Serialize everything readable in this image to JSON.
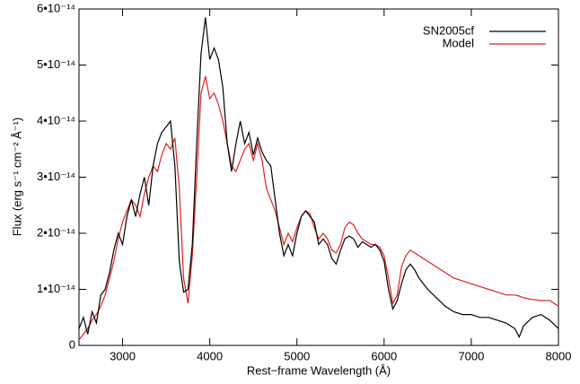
{
  "chart_data": {
    "type": "line",
    "xlabel": "Rest−frame Wavelength (Å)",
    "ylabel": "Flux (erg s⁻¹ cm⁻² Å⁻¹)",
    "xlim": [
      2500,
      8000
    ],
    "xticks": [
      3000,
      4000,
      5000,
      6000,
      7000,
      8000
    ],
    "ylim": [
      0,
      6e-14
    ],
    "yticks": [
      0,
      {
        "value": 1e-14,
        "label": "1•10⁻¹⁴"
      },
      {
        "value": 2e-14,
        "label": "2•10⁻¹⁴"
      },
      {
        "value": 3e-14,
        "label": "3•10⁻¹⁴"
      },
      {
        "value": 4e-14,
        "label": "4•10⁻¹⁴"
      },
      {
        "value": 5e-14,
        "label": "5•10⁻¹⁴"
      },
      {
        "value": 6e-14,
        "label": "6•10⁻¹⁴"
      }
    ],
    "legend": "upper right",
    "x": [
      2500,
      2550,
      2600,
      2650,
      2700,
      2750,
      2800,
      2850,
      2900,
      2950,
      3000,
      3050,
      3100,
      3150,
      3200,
      3250,
      3300,
      3350,
      3400,
      3450,
      3500,
      3550,
      3600,
      3650,
      3700,
      3750,
      3800,
      3850,
      3900,
      3950,
      4000,
      4050,
      4100,
      4150,
      4200,
      4250,
      4300,
      4350,
      4400,
      4450,
      4500,
      4550,
      4600,
      4650,
      4700,
      4750,
      4800,
      4850,
      4900,
      4950,
      5000,
      5050,
      5100,
      5150,
      5200,
      5250,
      5300,
      5350,
      5400,
      5450,
      5500,
      5550,
      5600,
      5650,
      5700,
      5750,
      5800,
      5850,
      5900,
      5950,
      6000,
      6050,
      6100,
      6150,
      6200,
      6250,
      6300,
      6350,
      6400,
      6500,
      6600,
      6700,
      6800,
      6900,
      7000,
      7100,
      7200,
      7300,
      7400,
      7500,
      7550,
      7600,
      7700,
      7800,
      7900,
      8000
    ],
    "series": [
      {
        "name": "SN2005cf",
        "color": "#000000",
        "values": [
          3e-15,
          5e-15,
          2e-15,
          6e-15,
          4e-15,
          9e-15,
          1e-14,
          1.3e-14,
          1.7e-14,
          2e-14,
          1.8e-14,
          2.3e-14,
          2.6e-14,
          2.3e-14,
          2.7e-14,
          3e-14,
          2.5e-14,
          3.2e-14,
          3.6e-14,
          3.8e-14,
          3.9e-14,
          4e-14,
          3.2e-14,
          1.5e-14,
          9.5e-15,
          1e-14,
          1.8e-14,
          3.6e-14,
          5.2e-14,
          5.85e-14,
          5.1e-14,
          5.3e-14,
          5.1e-14,
          4.6e-14,
          3.6e-14,
          3.1e-14,
          3.6e-14,
          4e-14,
          3.6e-14,
          3.8e-14,
          3.4e-14,
          3.7e-14,
          3.45e-14,
          3.3e-14,
          3.2e-14,
          2.6e-14,
          2e-14,
          1.6e-14,
          1.8e-14,
          1.6e-14,
          2e-14,
          2.3e-14,
          2.4e-14,
          2.3e-14,
          2.2e-14,
          1.8e-14,
          1.9e-14,
          1.8e-14,
          1.55e-14,
          1.45e-14,
          1.7e-14,
          1.9e-14,
          1.95e-14,
          1.9e-14,
          1.75e-14,
          1.85e-14,
          1.8e-14,
          1.75e-14,
          1.8e-14,
          1.7e-14,
          1.5e-14,
          1e-14,
          6.5e-15,
          8e-15,
          1.1e-14,
          1.35e-14,
          1.45e-14,
          1.35e-14,
          1.2e-14,
          1e-14,
          8.5e-15,
          7e-15,
          6e-15,
          5.5e-15,
          5.5e-15,
          5e-15,
          5e-15,
          4.5e-15,
          4e-15,
          3e-15,
          1.5e-15,
          3.5e-15,
          5e-15,
          5.5e-15,
          4.5e-15,
          3e-15
        ]
      },
      {
        "name": "Model",
        "color": "#e02020",
        "values": [
          1e-15,
          2e-15,
          3e-15,
          4.5e-15,
          5.5e-15,
          7e-15,
          9e-15,
          1.2e-14,
          1.5e-14,
          1.9e-14,
          2.2e-14,
          2.4e-14,
          2.6e-14,
          2.5e-14,
          2.3e-14,
          2.7e-14,
          3e-14,
          3.2e-14,
          3.1e-14,
          3.4e-14,
          3.6e-14,
          3.5e-14,
          3.7e-14,
          2.8e-14,
          1.2e-14,
          7.5e-15,
          1.6e-14,
          3e-14,
          4.5e-14,
          4.8e-14,
          4.4e-14,
          4.5e-14,
          4.3e-14,
          4e-14,
          3.6e-14,
          3.2e-14,
          3.1e-14,
          3.3e-14,
          3.5e-14,
          3.6e-14,
          3.3e-14,
          3.6e-14,
          3.3e-14,
          2.8e-14,
          2.6e-14,
          2.4e-14,
          2.1e-14,
          1.8e-14,
          2e-14,
          1.85e-14,
          2.1e-14,
          2.3e-14,
          2.4e-14,
          2.35e-14,
          2.1e-14,
          1.9e-14,
          2e-14,
          1.9e-14,
          1.7e-14,
          1.65e-14,
          1.8e-14,
          2.1e-14,
          2.2e-14,
          2.15e-14,
          2e-14,
          1.9e-14,
          1.85e-14,
          1.8e-14,
          1.8e-14,
          1.75e-14,
          1.6e-14,
          1.2e-14,
          7.5e-15,
          9e-15,
          1.4e-14,
          1.6e-14,
          1.7e-14,
          1.65e-14,
          1.6e-14,
          1.5e-14,
          1.4e-14,
          1.3e-14,
          1.2e-14,
          1.15e-14,
          1.1e-14,
          1.05e-14,
          1e-14,
          9.5e-15,
          9e-15,
          9e-15,
          8.8e-15,
          8.5e-15,
          8.2e-15,
          8e-15,
          8e-15,
          7e-15
        ]
      }
    ]
  }
}
